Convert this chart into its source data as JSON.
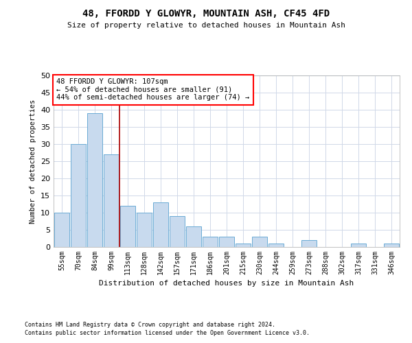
{
  "title": "48, FFORDD Y GLOWYR, MOUNTAIN ASH, CF45 4FD",
  "subtitle": "Size of property relative to detached houses in Mountain Ash",
  "xlabel": "Distribution of detached houses by size in Mountain Ash",
  "ylabel": "Number of detached properties",
  "categories": [
    "55sqm",
    "70sqm",
    "84sqm",
    "99sqm",
    "113sqm",
    "128sqm",
    "142sqm",
    "157sqm",
    "171sqm",
    "186sqm",
    "201sqm",
    "215sqm",
    "230sqm",
    "244sqm",
    "259sqm",
    "273sqm",
    "288sqm",
    "302sqm",
    "317sqm",
    "331sqm",
    "346sqm"
  ],
  "values": [
    10,
    30,
    39,
    27,
    12,
    10,
    13,
    9,
    6,
    3,
    3,
    1,
    3,
    1,
    0,
    2,
    0,
    0,
    1,
    0,
    1
  ],
  "bar_color": "#c8daee",
  "bar_edge_color": "#6aaad4",
  "vline_color": "#aa0000",
  "vline_x_idx": 3,
  "annotation_text": "48 FFORDD Y GLOWYR: 107sqm\n← 54% of detached houses are smaller (91)\n44% of semi-detached houses are larger (74) →",
  "annotation_box_color": "white",
  "annotation_box_edge_color": "red",
  "ylim": [
    0,
    50
  ],
  "yticks": [
    0,
    5,
    10,
    15,
    20,
    25,
    30,
    35,
    40,
    45,
    50
  ],
  "footer1": "Contains HM Land Registry data © Crown copyright and database right 2024.",
  "footer2": "Contains public sector information licensed under the Open Government Licence v3.0.",
  "bg_color": "#ffffff",
  "grid_color": "#d0d8e8"
}
